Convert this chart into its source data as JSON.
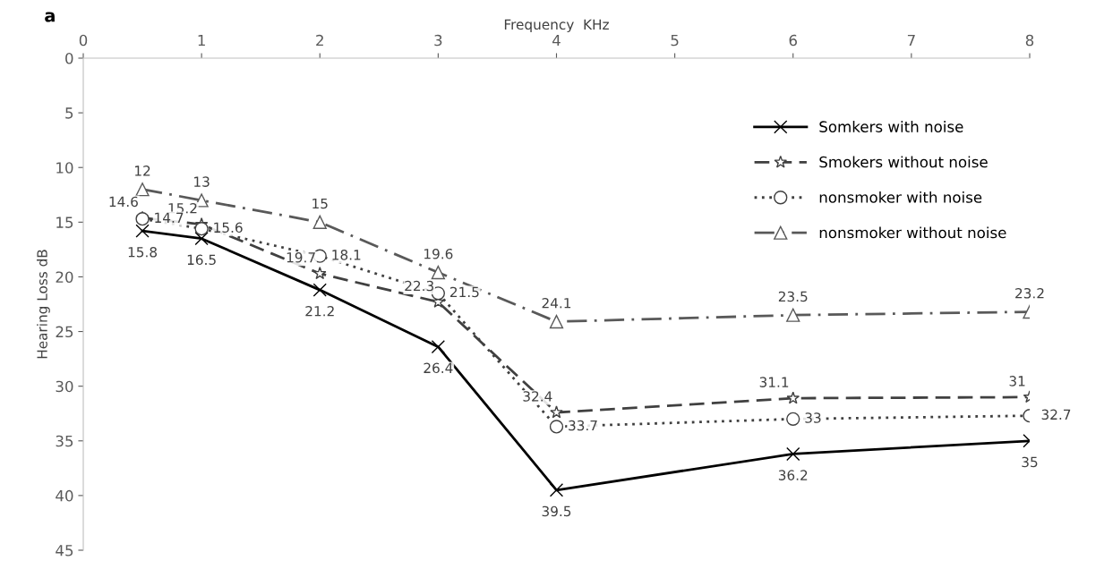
{
  "chart_data": {
    "type": "line",
    "title": "a",
    "xlabel": "Frequency  KHz",
    "ylabel": "Hearing Loss dB",
    "x": [
      0.5,
      1,
      2,
      3,
      4,
      6,
      8
    ],
    "series": [
      {
        "name": "Somkers with noise",
        "color": "#000000",
        "marker": "cross",
        "line_style": "solid",
        "values": [
          15.8,
          16.5,
          21.2,
          26.4,
          39.5,
          36.2,
          35
        ]
      },
      {
        "name": "Smokers without noise",
        "color": "#404040",
        "marker": "star",
        "line_style": "dashed",
        "values": [
          14.6,
          15.2,
          19.7,
          22.3,
          32.4,
          31.1,
          31
        ]
      },
      {
        "name": "nonsmoker with noise",
        "color": "#404040",
        "marker": "circle",
        "line_style": "dotted",
        "values": [
          14.7,
          15.6,
          18.1,
          21.5,
          33.7,
          33,
          32.7
        ]
      },
      {
        "name": "nonsmoker without noise",
        "color": "#595959",
        "marker": "triangle",
        "line_style": "dashdot",
        "values": [
          12,
          13,
          15,
          19.6,
          24.1,
          23.5,
          23.2
        ]
      }
    ],
    "xlim": [
      0,
      8
    ],
    "xticks": [
      0,
      1,
      2,
      3,
      4,
      5,
      6,
      7,
      8
    ],
    "ylim": [
      45,
      0
    ],
    "yticks": [
      0,
      5,
      10,
      15,
      20,
      25,
      30,
      35,
      40,
      45
    ],
    "data_labels": true,
    "legend": "top right",
    "grid": false
  }
}
